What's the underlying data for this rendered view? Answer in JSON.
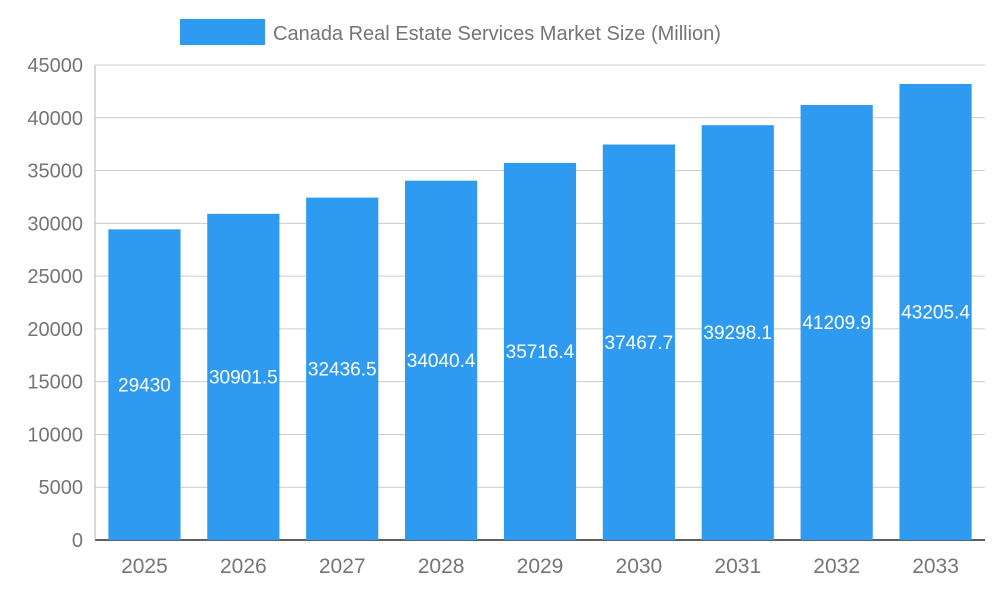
{
  "legend": {
    "title": "Canada Real Estate Services Market Size (Million)"
  },
  "chart_data": {
    "type": "bar",
    "title": "Canada Real Estate Services Market Size (Million)",
    "xlabel": "",
    "ylabel": "",
    "categories": [
      "2025",
      "2026",
      "2027",
      "2028",
      "2029",
      "2030",
      "2031",
      "2032",
      "2033"
    ],
    "values": [
      29430,
      30901.5,
      32436.5,
      34040.4,
      35716.4,
      37467.7,
      39298.1,
      41209.9,
      43205.4
    ],
    "value_labels": [
      "29430",
      "30901.5",
      "32436.5",
      "34040.4",
      "35716.4",
      "37467.7",
      "39298.1",
      "41209.9",
      "43205.4"
    ],
    "ylim": [
      0,
      45000
    ],
    "yticks": [
      0,
      5000,
      10000,
      15000,
      20000,
      25000,
      30000,
      35000,
      40000,
      45000
    ],
    "grid": true,
    "legend_position": "top",
    "colors": {
      "bar": "#2F9BF0",
      "grid": "#cccccc",
      "baseline": "#5f5f5f",
      "axis_line": "#b3b3b3",
      "axis_text": "#757575",
      "title_text": "#757575",
      "value_label": "#ffffff",
      "background": "#ffffff"
    }
  }
}
